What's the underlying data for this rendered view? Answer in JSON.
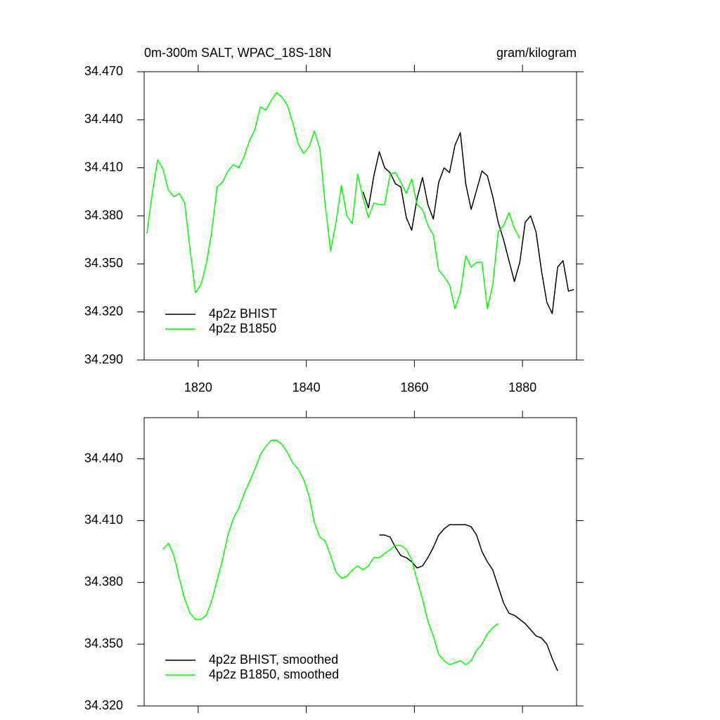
{
  "chart_data": [
    {
      "type": "line",
      "title": "0m-300m SALT, WPAC_18S-18N",
      "units": "gram/kilogram",
      "x": [
        1810.5,
        1811.5,
        1812.5,
        1813.5,
        1814.5,
        1815.5,
        1816.5,
        1817.5,
        1818.5,
        1819.5,
        1820.5,
        1821.5,
        1822.5,
        1823.5,
        1824.5,
        1825.5,
        1826.5,
        1827.5,
        1828.5,
        1829.5,
        1830.5,
        1831.5,
        1832.5,
        1833.5,
        1834.5,
        1835.5,
        1836.5,
        1837.5,
        1838.5,
        1839.5,
        1840.5,
        1841.5,
        1842.5,
        1843.5,
        1844.5,
        1845.5,
        1846.5,
        1847.5,
        1848.5,
        1849.5,
        1850.5,
        1851.5,
        1852.5,
        1853.5,
        1854.5,
        1855.5,
        1856.5,
        1857.5,
        1858.5,
        1859.5,
        1860.5,
        1861.5,
        1862.5,
        1863.5,
        1864.5,
        1865.5,
        1866.5,
        1867.5,
        1868.5,
        1869.5,
        1870.5,
        1871.5,
        1872.5,
        1873.5,
        1874.5,
        1875.5,
        1876.5,
        1877.5,
        1878.5,
        1879.5,
        1880.5,
        1881.5,
        1882.5,
        1883.5,
        1884.5,
        1885.5,
        1886.5,
        1887.5,
        1888.5,
        1889.5
      ],
      "series": [
        {
          "name": "4p2z BHIST",
          "color": "#000000",
          "values": [
            null,
            null,
            null,
            null,
            null,
            null,
            null,
            null,
            null,
            null,
            null,
            null,
            null,
            null,
            null,
            null,
            null,
            null,
            null,
            null,
            null,
            null,
            null,
            null,
            null,
            null,
            null,
            null,
            null,
            null,
            null,
            null,
            null,
            null,
            null,
            null,
            null,
            null,
            null,
            null,
            34.395,
            34.385,
            34.405,
            34.42,
            34.41,
            34.407,
            34.4,
            34.398,
            34.379,
            34.371,
            34.391,
            34.404,
            34.387,
            34.378,
            34.401,
            34.41,
            34.407,
            34.424,
            34.432,
            34.4,
            34.384,
            34.396,
            34.408,
            34.405,
            34.392,
            34.376,
            34.365,
            34.352,
            34.339,
            34.351,
            34.376,
            34.38,
            34.37,
            34.346,
            34.326,
            34.319,
            34.348,
            34.352,
            34.333,
            34.334
          ]
        },
        {
          "name": "4p2z B1850",
          "color": "#00ff00",
          "values": [
            34.369,
            34.394,
            34.415,
            34.409,
            34.396,
            34.392,
            34.394,
            34.388,
            34.359,
            34.332,
            34.337,
            34.35,
            34.37,
            34.398,
            34.401,
            34.408,
            34.412,
            34.41,
            34.417,
            34.427,
            34.434,
            34.448,
            34.446,
            34.452,
            34.457,
            34.454,
            34.449,
            34.438,
            34.425,
            34.419,
            34.423,
            34.433,
            34.422,
            34.387,
            34.358,
            34.376,
            34.399,
            34.38,
            34.375,
            34.406,
            34.391,
            34.379,
            34.388,
            34.387,
            34.387,
            34.406,
            34.407,
            34.401,
            34.394,
            34.403,
            34.387,
            34.384,
            34.374,
            34.368,
            34.346,
            34.342,
            34.337,
            34.322,
            34.332,
            34.355,
            34.348,
            34.351,
            34.351,
            34.322,
            34.337,
            34.37,
            34.374,
            34.382,
            34.372,
            34.366,
            null,
            null,
            null,
            null,
            null,
            null,
            null,
            null,
            null,
            null
          ]
        }
      ],
      "xlim": [
        1810,
        1890
      ],
      "xticks": [
        1820,
        1840,
        1860,
        1880
      ],
      "xtick_labels": true,
      "ylim": [
        34.29,
        34.47
      ],
      "yticks": [
        {
          "value": 34.29,
          "label": "34.290"
        },
        {
          "value": 34.32,
          "label": "34.320"
        },
        {
          "value": 34.35,
          "label": "34.350"
        },
        {
          "value": 34.38,
          "label": "34.380"
        },
        {
          "value": 34.41,
          "label": "34.410"
        },
        {
          "value": 34.44,
          "label": "34.440"
        },
        {
          "value": 34.47,
          "label": "34.470"
        }
      ],
      "legend": "lower left"
    },
    {
      "type": "line",
      "x": [
        1813.5,
        1814.5,
        1815.5,
        1816.5,
        1817.5,
        1818.5,
        1819.5,
        1820.5,
        1821.5,
        1822.5,
        1823.5,
        1824.5,
        1825.5,
        1826.5,
        1827.5,
        1828.5,
        1829.5,
        1830.5,
        1831.5,
        1832.5,
        1833.5,
        1834.5,
        1835.5,
        1836.5,
        1837.5,
        1838.5,
        1839.5,
        1840.5,
        1841.5,
        1842.5,
        1843.5,
        1844.5,
        1845.5,
        1846.5,
        1847.5,
        1848.5,
        1849.5,
        1850.5,
        1851.5,
        1852.5,
        1853.5,
        1854.5,
        1855.5,
        1856.5,
        1857.5,
        1858.5,
        1859.5,
        1860.5,
        1861.5,
        1862.5,
        1863.5,
        1864.5,
        1865.5,
        1866.5,
        1867.5,
        1868.5,
        1869.5,
        1870.5,
        1871.5,
        1872.5,
        1873.5,
        1874.5,
        1875.5,
        1876.5,
        1877.5,
        1878.5,
        1879.5,
        1880.5,
        1881.5,
        1882.5,
        1883.5,
        1884.5,
        1885.5,
        1886.5
      ],
      "series": [
        {
          "name": "4p2z BHIST, smoothed",
          "color": "#000000",
          "values": [
            null,
            null,
            null,
            null,
            null,
            null,
            null,
            null,
            null,
            null,
            null,
            null,
            null,
            null,
            null,
            null,
            null,
            null,
            null,
            null,
            null,
            null,
            null,
            null,
            null,
            null,
            null,
            null,
            null,
            null,
            null,
            null,
            null,
            null,
            null,
            null,
            null,
            null,
            null,
            null,
            34.403,
            34.403,
            34.402,
            34.397,
            34.393,
            34.392,
            34.39,
            34.387,
            34.388,
            34.392,
            34.397,
            34.403,
            34.406,
            34.408,
            34.408,
            34.408,
            34.408,
            34.407,
            34.403,
            34.395,
            34.39,
            34.386,
            34.378,
            34.37,
            34.365,
            34.364,
            34.362,
            34.36,
            34.357,
            34.354,
            34.353,
            34.35,
            34.343,
            34.337
          ]
        },
        {
          "name": "4p2z B1850, smoothed",
          "color": "#00ff00",
          "values": [
            34.396,
            34.399,
            34.393,
            34.382,
            34.372,
            34.365,
            34.362,
            34.362,
            34.364,
            34.371,
            34.381,
            34.391,
            34.403,
            34.411,
            34.416,
            34.423,
            34.429,
            34.435,
            34.442,
            34.446,
            34.449,
            34.449,
            34.447,
            34.443,
            34.438,
            34.435,
            34.43,
            34.422,
            34.409,
            34.402,
            34.4,
            34.393,
            34.385,
            34.382,
            34.383,
            34.386,
            34.388,
            34.386,
            34.388,
            34.392,
            34.392,
            34.394,
            34.396,
            34.398,
            34.398,
            34.396,
            34.391,
            34.381,
            34.372,
            34.361,
            34.354,
            34.345,
            34.342,
            34.34,
            34.341,
            34.342,
            34.34,
            34.342,
            34.347,
            34.35,
            34.355,
            34.358,
            34.36,
            null,
            null,
            null,
            null,
            null,
            null,
            null,
            null,
            null,
            null,
            null
          ]
        }
      ],
      "xlim": [
        1810,
        1890
      ],
      "xticks": [
        1820,
        1840,
        1860,
        1880
      ],
      "xtick_labels": false,
      "ylim": [
        34.32,
        34.46
      ],
      "yticks": [
        {
          "value": 34.32,
          "label": "34.320"
        },
        {
          "value": 34.35,
          "label": "34.350"
        },
        {
          "value": 34.38,
          "label": "34.380"
        },
        {
          "value": 34.41,
          "label": "34.410"
        },
        {
          "value": 34.44,
          "label": "34.440"
        }
      ],
      "legend": "lower left"
    }
  ]
}
